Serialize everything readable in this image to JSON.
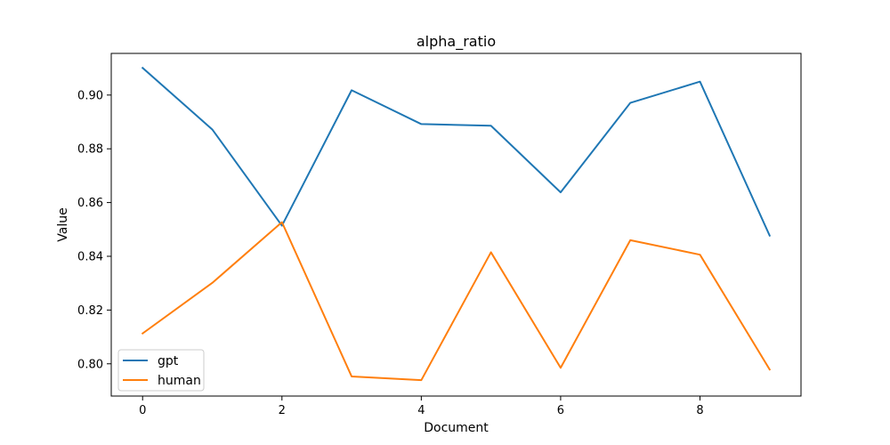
{
  "chart_data": {
    "type": "line",
    "title": "alpha_ratio",
    "xlabel": "Document",
    "ylabel": "Value",
    "xlim": [
      -0.45,
      9.45
    ],
    "ylim": [
      0.788,
      0.9155
    ],
    "x": [
      0,
      1,
      2,
      3,
      4,
      5,
      6,
      7,
      8,
      9
    ],
    "xticks": [
      0,
      2,
      4,
      6,
      8
    ],
    "xtick_labels": [
      "0",
      "2",
      "4",
      "6",
      "8"
    ],
    "yticks": [
      0.8,
      0.82,
      0.84,
      0.86,
      0.88,
      0.9
    ],
    "ytick_labels": [
      "0.80",
      "0.82",
      "0.84",
      "0.86",
      "0.88",
      "0.90"
    ],
    "legend_position": "lower-left",
    "grid": false,
    "series": [
      {
        "name": "gpt",
        "color": "#1f77b4",
        "values": [
          0.9101,
          0.8872,
          0.8514,
          0.9018,
          0.8892,
          0.8886,
          0.8638,
          0.8971,
          0.905,
          0.8477
        ]
      },
      {
        "name": "human",
        "color": "#ff7f0e",
        "values": [
          0.8113,
          0.8301,
          0.8527,
          0.7953,
          0.7939,
          0.8415,
          0.7985,
          0.846,
          0.8406,
          0.7979
        ]
      }
    ]
  }
}
